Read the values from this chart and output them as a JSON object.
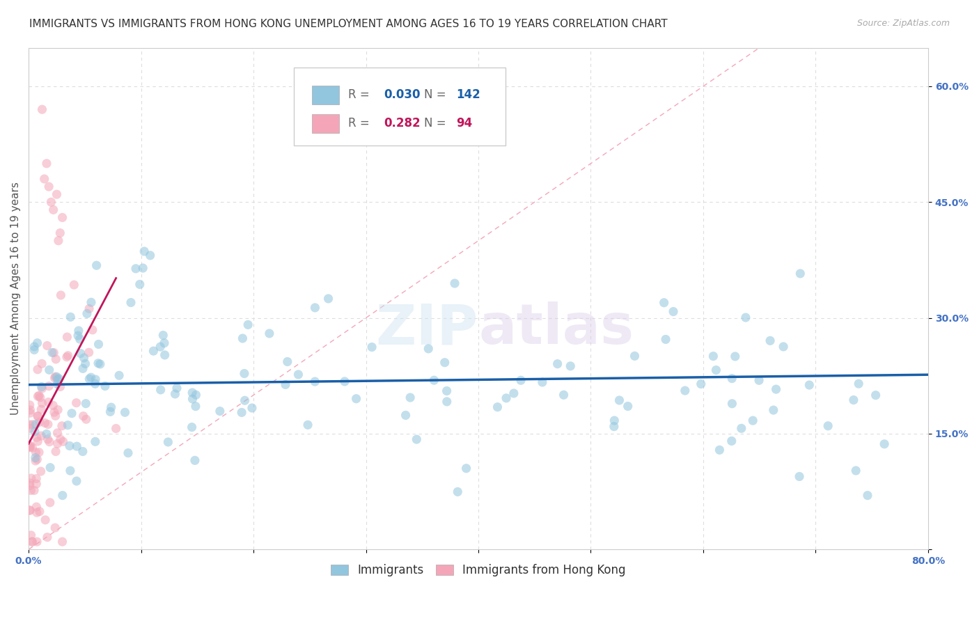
{
  "title": "IMMIGRANTS VS IMMIGRANTS FROM HONG KONG UNEMPLOYMENT AMONG AGES 16 TO 19 YEARS CORRELATION CHART",
  "source": "Source: ZipAtlas.com",
  "ylabel": "Unemployment Among Ages 16 to 19 years",
  "xlim": [
    0.0,
    0.8
  ],
  "ylim": [
    0.0,
    0.65
  ],
  "xtick_positions": [
    0.0,
    0.1,
    0.2,
    0.3,
    0.4,
    0.5,
    0.6,
    0.7,
    0.8
  ],
  "xticklabels": [
    "0.0%",
    "",
    "",
    "",
    "",
    "",
    "",
    "",
    "80.0%"
  ],
  "ytick_positions": [
    0.0,
    0.15,
    0.3,
    0.45,
    0.6
  ],
  "yticklabels": [
    "",
    "15.0%",
    "30.0%",
    "45.0%",
    "60.0%"
  ],
  "grid_color": "#dddddd",
  "background_color": "#ffffff",
  "legend_R1": "0.030",
  "legend_N1": "142",
  "legend_R2": "0.282",
  "legend_N2": "94",
  "blue_color": "#92c5de",
  "pink_color": "#f4a6b8",
  "blue_line_color": "#1a5fa8",
  "pink_line_color": "#c0165a",
  "diagonal_color": "#f4a6b8",
  "watermark": "ZIPatlas",
  "title_fontsize": 11,
  "source_fontsize": 9,
  "axis_label_fontsize": 11,
  "tick_label_fontsize": 10,
  "scatter_size": 90,
  "scatter_alpha": 0.55
}
